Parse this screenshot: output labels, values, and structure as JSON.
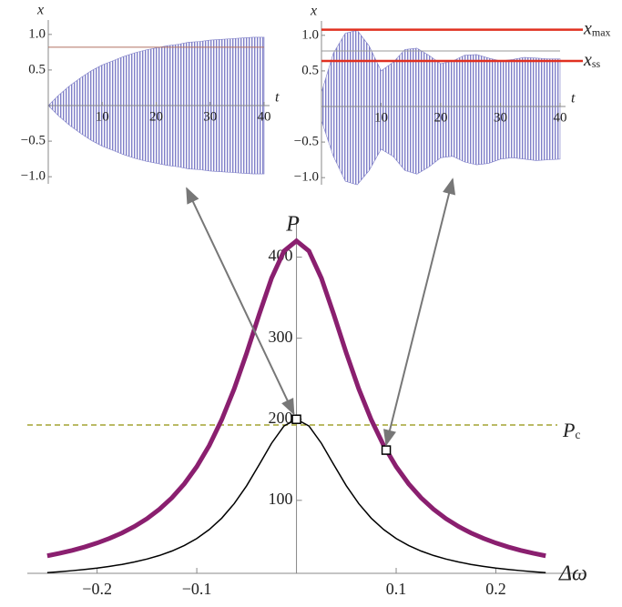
{
  "chart_data": [
    {
      "type": "line",
      "x_label": "Δω",
      "y_label": "P",
      "xlim": [
        -0.27,
        0.29
      ],
      "ylim": [
        10,
        450
      ],
      "xticks": [
        {
          "value": -0.2,
          "label": "−0.2"
        },
        {
          "value": -0.1,
          "label": "−0.1"
        },
        0.1,
        0.2
      ],
      "yticks": [
        100,
        200,
        300,
        400
      ],
      "x": [
        -0.25,
        -0.2375,
        -0.225,
        -0.2125,
        -0.2,
        -0.1875,
        -0.175,
        -0.1625,
        -0.15,
        -0.1375,
        -0.125,
        -0.1125,
        -0.1,
        -0.0875,
        -0.075,
        -0.0625,
        -0.05,
        -0.0375,
        -0.025,
        -0.0125,
        0,
        0.0125,
        0.025,
        0.0375,
        0.05,
        0.0625,
        0.075,
        0.0875,
        0.1,
        0.1125,
        0.125,
        0.1375,
        0.15,
        0.1625,
        0.175,
        0.1875,
        0.2,
        0.2125,
        0.225,
        0.2375,
        0.25
      ],
      "series": [
        {
          "color": "#8a1f6f",
          "values": [
            31.6,
            34.7,
            38.3,
            42.5,
            47.4,
            53.1,
            59.8,
            67.8,
            77.4,
            89.0,
            103.1,
            120.4,
            141.6,
            167.6,
            199.4,
            237.5,
            281.6,
            329.0,
            374.0,
            407.5,
            420,
            407.5,
            374.0,
            329.0,
            281.6,
            237.5,
            199.4,
            167.6,
            141.6,
            120.4,
            103.1,
            89.0,
            77.4,
            67.8,
            59.8,
            53.1,
            47.4,
            42.5,
            38.3,
            34.7,
            31.6
          ]
        },
        {
          "color": "#000000",
          "values": [
            10.9,
            12.0,
            13.3,
            14.8,
            16.5,
            18.6,
            21.0,
            24.0,
            27.6,
            32.0,
            37.5,
            44.3,
            52.9,
            64.0,
            78.0,
            95.9,
            118.0,
            143.8,
            170.4,
            191.7,
            200,
            191.7,
            170.4,
            143.8,
            118.0,
            95.9,
            78.0,
            64.0,
            52.9,
            44.3,
            37.5,
            32.0,
            27.6,
            24.0,
            21.0,
            18.6,
            16.5,
            14.8,
            13.3,
            12.0,
            10.9
          ]
        }
      ],
      "hlines": [
        {
          "value": 193,
          "color": "#a3a332",
          "label": {
            "text": "P",
            "sub": "c"
          }
        }
      ],
      "points": [
        {
          "x": 0,
          "y": 200
        },
        {
          "x": 0.09,
          "y": 162
        }
      ]
    },
    {
      "type": "envelope",
      "x_label": "t",
      "y_label": "x",
      "color": "#7f7fc8",
      "xlim": [
        0,
        40
      ],
      "ylim": [
        -1.1,
        1.1
      ],
      "xticks": [
        10,
        20,
        30,
        40
      ],
      "yticks": [
        {
          "value": -1.0,
          "label": "−1.0"
        },
        {
          "value": -0.5,
          "label": "−0.5"
        },
        0.5,
        {
          "value": 1.0,
          "label": "1.0"
        }
      ],
      "x": [
        0,
        2,
        4,
        6,
        8,
        10,
        12,
        14,
        16,
        18,
        20,
        22,
        24,
        26,
        28,
        30,
        32,
        34,
        36,
        38,
        40
      ],
      "upper": [
        0,
        0.15,
        0.28,
        0.39,
        0.49,
        0.57,
        0.63,
        0.69,
        0.74,
        0.78,
        0.81,
        0.84,
        0.86,
        0.89,
        0.9,
        0.92,
        0.93,
        0.94,
        0.95,
        0.96,
        0.96
      ],
      "lower": [
        0,
        -0.15,
        -0.28,
        -0.39,
        -0.49,
        -0.57,
        -0.63,
        -0.69,
        -0.74,
        -0.78,
        -0.81,
        -0.84,
        -0.86,
        -0.89,
        -0.9,
        -0.92,
        -0.93,
        -0.94,
        -0.95,
        -0.96,
        -0.96
      ],
      "hlines": [
        {
          "value": 0.82,
          "color": "#b07060"
        }
      ]
    },
    {
      "type": "envelope",
      "x_label": "t",
      "y_label": "x",
      "color": "#7f7fc8",
      "xlim": [
        0,
        40
      ],
      "ylim": [
        -1.1,
        1.1
      ],
      "xticks": [
        10,
        20,
        30,
        40
      ],
      "yticks": [
        {
          "value": -1.0,
          "label": "−1.0"
        },
        {
          "value": -0.5,
          "label": "−0.5"
        },
        0.5,
        {
          "value": 1.0,
          "label": "1.0"
        }
      ],
      "x": [
        0,
        2,
        4,
        6,
        8,
        10,
        12,
        14,
        16,
        18,
        20,
        22,
        24,
        26,
        28,
        30,
        32,
        34,
        36,
        38,
        40
      ],
      "upper": [
        0.2,
        0.75,
        1.03,
        1.07,
        0.85,
        0.5,
        0.62,
        0.8,
        0.82,
        0.72,
        0.6,
        0.64,
        0.72,
        0.73,
        0.68,
        0.64,
        0.66,
        0.69,
        0.68,
        0.67,
        0.67
      ],
      "lower": [
        -0.2,
        -0.7,
        -1.05,
        -1.1,
        -0.9,
        -0.6,
        -0.7,
        -0.9,
        -0.95,
        -0.85,
        -0.72,
        -0.7,
        -0.78,
        -0.82,
        -0.8,
        -0.74,
        -0.72,
        -0.74,
        -0.76,
        -0.75,
        -0.74
      ],
      "hlines": [
        {
          "value": 0.78,
          "color": "#999999"
        },
        {
          "value": 1.08,
          "color": "#e03020",
          "label": {
            "text": "x",
            "sub": "max"
          }
        },
        {
          "value": 0.64,
          "color": "#e03020",
          "label": {
            "text": "x",
            "sub": "ss"
          }
        }
      ]
    }
  ]
}
